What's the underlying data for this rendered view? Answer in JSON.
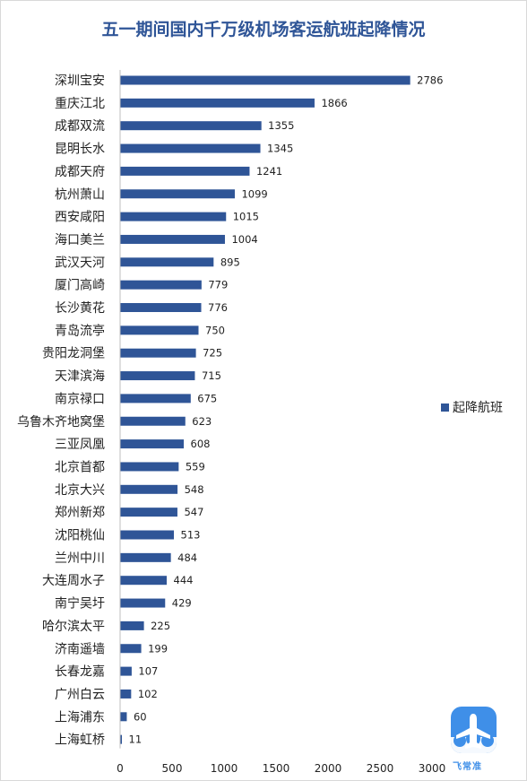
{
  "chart_data": {
    "type": "bar",
    "orientation": "horizontal",
    "title": "五一期间国内千万级机场客运航班起降情况",
    "xlabel": "",
    "ylabel": "",
    "xlim": [
      0,
      3000
    ],
    "ticks": [
      "0",
      "500",
      "1000",
      "1500",
      "2000",
      "2500",
      "3000"
    ],
    "categories": [
      "深圳宝安",
      "重庆江北",
      "成都双流",
      "昆明长水",
      "成都天府",
      "杭州萧山",
      "西安咸阳",
      "海口美兰",
      "武汉天河",
      "厦门高崎",
      "长沙黄花",
      "青岛流亭",
      "贵阳龙洞堡",
      "天津滨海",
      "南京禄口",
      "乌鲁木齐地窝堡",
      "三亚凤凰",
      "北京首都",
      "北京大兴",
      "郑州新郑",
      "沈阳桃仙",
      "兰州中川",
      "大连周水子",
      "南宁吴圩",
      "哈尔滨太平",
      "济南遥墙",
      "长春龙嘉",
      "广州白云",
      "上海浦东",
      "上海虹桥"
    ],
    "series": [
      {
        "name": "起降航班",
        "color": "#2f5597",
        "values": [
          2786,
          1866,
          1355,
          1345,
          1241,
          1099,
          1015,
          1004,
          895,
          779,
          776,
          750,
          725,
          715,
          675,
          623,
          608,
          559,
          548,
          547,
          513,
          484,
          444,
          429,
          225,
          199,
          107,
          102,
          60,
          11
        ]
      }
    ],
    "grid": false,
    "legend_position": "right"
  },
  "logo": {
    "icon": "airplane-icon",
    "text": "飞常准",
    "color": "#3f8fe8"
  }
}
